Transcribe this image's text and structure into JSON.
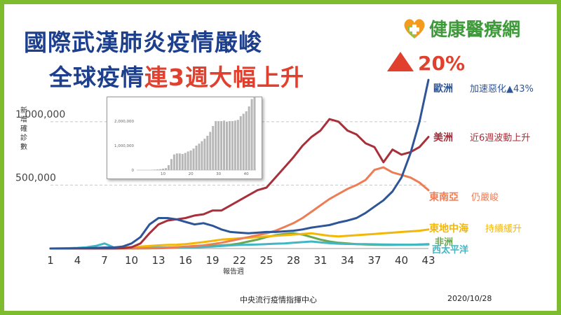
{
  "header": {
    "title_line1": "國際武漢肺炎疫情嚴峻",
    "title_line2_prefix": "全球疫情",
    "title_line2_highlight": "連3週大幅上升",
    "increase_label": "20%"
  },
  "brand": {
    "name": "健康醫療網",
    "logo": "health-heart-cross-logo"
  },
  "footer": {
    "source": "中央流行疫情指揮中心",
    "date": "2020/10/28"
  },
  "colors": {
    "title": "#1d3f8c",
    "accent": "#e0402d",
    "frame": "#7dbb2f",
    "europe": "#2e5597",
    "americas": "#a8303a",
    "southeast_asia": "#ed7d55",
    "eastern_mediterranean": "#f2b707",
    "africa": "#6aa84f",
    "western_pacific": "#41b6c4"
  },
  "chart_data": [
    {
      "type": "line",
      "ylabel": "新增確診數",
      "xlabel": "報告週",
      "x_ticks": [
        1,
        4,
        7,
        10,
        13,
        16,
        19,
        22,
        25,
        28,
        31,
        34,
        37,
        40,
        43
      ],
      "y_ticks": [
        "500,000",
        "1,000,000"
      ],
      "y_tick_values": [
        500000,
        1000000
      ],
      "x": [
        1,
        2,
        3,
        4,
        5,
        6,
        7,
        8,
        9,
        10,
        11,
        12,
        13,
        14,
        15,
        16,
        17,
        18,
        19,
        20,
        21,
        22,
        23,
        24,
        25,
        26,
        27,
        28,
        29,
        30,
        31,
        32,
        33,
        34,
        35,
        36,
        37,
        38,
        39,
        40,
        41,
        42,
        43
      ],
      "ylim": [
        0,
        1380000
      ],
      "series": [
        {
          "name": "歐洲",
          "color_key": "europe",
          "note": "加速惡化▲43%",
          "values": [
            0,
            0,
            0,
            2000,
            3000,
            5000,
            8000,
            8000,
            15000,
            40000,
            90000,
            190000,
            240000,
            240000,
            230000,
            210000,
            190000,
            200000,
            180000,
            150000,
            130000,
            125000,
            120000,
            125000,
            130000,
            130000,
            135000,
            140000,
            150000,
            165000,
            175000,
            185000,
            205000,
            220000,
            240000,
            280000,
            330000,
            380000,
            450000,
            560000,
            750000,
            1000000,
            1330000
          ]
        },
        {
          "name": "美洲",
          "color_key": "americas",
          "note": "近6週波動上升",
          "values": [
            0,
            0,
            0,
            0,
            0,
            0,
            0,
            0,
            2000,
            10000,
            40000,
            120000,
            190000,
            220000,
            230000,
            240000,
            260000,
            270000,
            300000,
            300000,
            340000,
            380000,
            420000,
            460000,
            480000,
            560000,
            640000,
            720000,
            810000,
            880000,
            930000,
            1020000,
            1000000,
            930000,
            900000,
            830000,
            800000,
            680000,
            780000,
            740000,
            760000,
            800000,
            880000
          ]
        },
        {
          "name": "東南亞",
          "color_key": "southeast_asia",
          "note": "仍嚴峻",
          "values": [
            0,
            0,
            0,
            0,
            0,
            0,
            0,
            0,
            0,
            500,
            1000,
            2000,
            4000,
            6000,
            10000,
            15000,
            20000,
            25000,
            35000,
            45000,
            60000,
            75000,
            90000,
            105000,
            120000,
            140000,
            170000,
            200000,
            240000,
            290000,
            340000,
            390000,
            430000,
            470000,
            500000,
            540000,
            620000,
            640000,
            600000,
            580000,
            560000,
            520000,
            460000
          ]
        },
        {
          "name": "東地中海",
          "color_key": "eastern_mediterranean",
          "note": "持續緩升",
          "values": [
            0,
            0,
            0,
            0,
            1000,
            2000,
            3000,
            6000,
            9000,
            12000,
            15000,
            20000,
            25000,
            28000,
            30000,
            35000,
            42000,
            50000,
            60000,
            70000,
            75000,
            80000,
            85000,
            90000,
            95000,
            100000,
            105000,
            110000,
            115000,
            120000,
            110000,
            100000,
            95000,
            100000,
            105000,
            110000,
            115000,
            120000,
            125000,
            130000,
            135000,
            140000,
            150000
          ]
        },
        {
          "name": "非洲",
          "color_key": "africa",
          "note": "",
          "values": [
            0,
            0,
            0,
            0,
            0,
            0,
            0,
            0,
            0,
            0,
            500,
            1000,
            2000,
            4000,
            6000,
            9000,
            12000,
            15000,
            20000,
            25000,
            30000,
            40000,
            55000,
            70000,
            90000,
            105000,
            115000,
            120000,
            110000,
            90000,
            70000,
            55000,
            45000,
            40000,
            35000,
            32000,
            30000,
            28000,
            28000,
            30000,
            30000,
            32000,
            34000
          ]
        },
        {
          "name": "西太平洋",
          "color_key": "western_pacific",
          "note": "",
          "values": [
            0,
            1000,
            3000,
            5000,
            10000,
            20000,
            40000,
            10000,
            5000,
            5000,
            6000,
            7000,
            8000,
            8000,
            9000,
            9000,
            10000,
            12000,
            15000,
            20000,
            25000,
            28000,
            30000,
            32000,
            35000,
            38000,
            40000,
            45000,
            50000,
            55000,
            48000,
            42000,
            38000,
            36000,
            35000,
            34000,
            33000,
            32000,
            31000,
            30000,
            30000,
            31000,
            32000
          ]
        }
      ]
    },
    {
      "type": "bar",
      "title": "",
      "y_ticks": [
        "0",
        "1,000,000",
        "2,000,000"
      ],
      "y_tick_values": [
        0,
        1000000,
        2000000
      ],
      "x_ticks": [
        10,
        20,
        30,
        40
      ],
      "x": [
        1,
        2,
        3,
        4,
        5,
        6,
        7,
        8,
        9,
        10,
        11,
        12,
        13,
        14,
        15,
        16,
        17,
        18,
        19,
        20,
        21,
        22,
        23,
        24,
        25,
        26,
        27,
        28,
        29,
        30,
        31,
        32,
        33,
        34,
        35,
        36,
        37,
        38,
        39,
        40,
        41,
        42,
        43
      ],
      "ylim": [
        0,
        2800000
      ],
      "values": [
        0,
        0,
        0,
        0,
        0,
        10000,
        20000,
        30000,
        40000,
        60000,
        80000,
        200000,
        450000,
        640000,
        680000,
        680000,
        660000,
        700000,
        760000,
        800000,
        880000,
        1000000,
        1080000,
        1180000,
        1280000,
        1400000,
        1560000,
        1800000,
        2000000,
        2000000,
        2000000,
        2020000,
        1980000,
        2000000,
        2000000,
        2020000,
        2050000,
        2200000,
        2300000,
        2400000,
        2600000,
        2900000,
        3300000
      ]
    }
  ]
}
